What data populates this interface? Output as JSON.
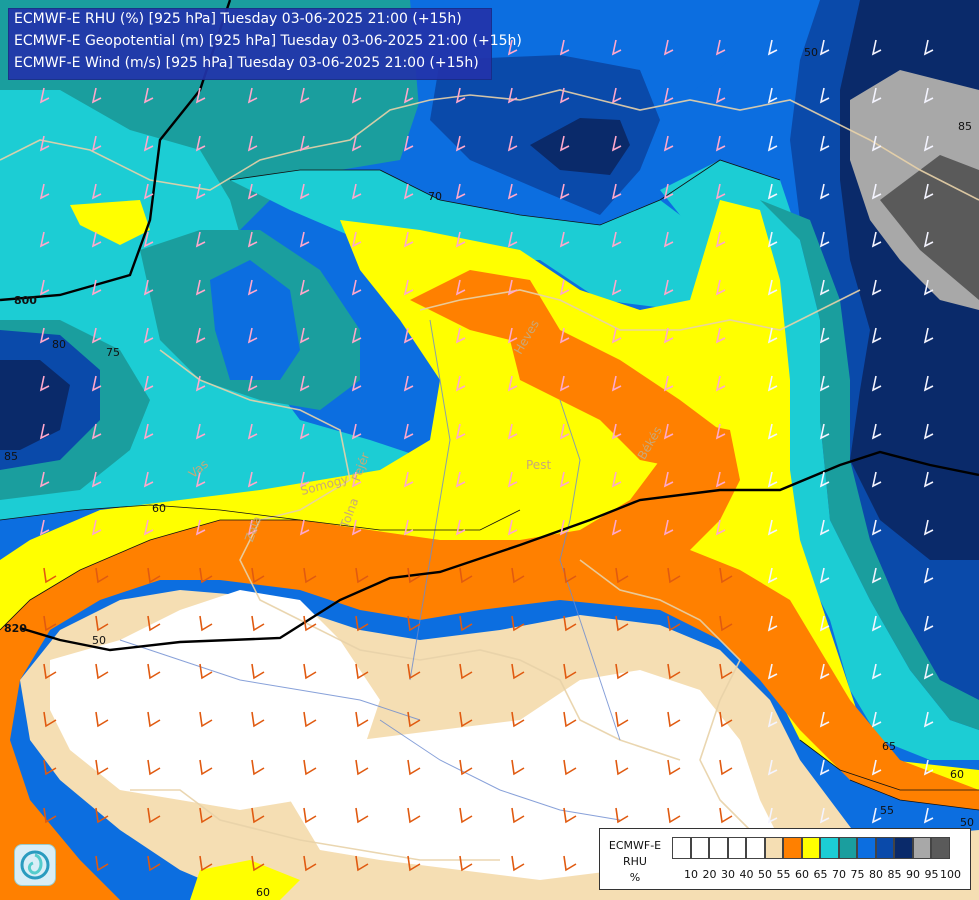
{
  "header": {
    "line1": "ECMWF-E RHU (%) [925 hPa] Tuesday 03-06-2025 21:00 (+15h)",
    "line2": "ECMWF-E Geopotential (m) [925 hPa] Tuesday 03-06-2025 21:00 (+15h)",
    "line3": "ECMWF-E Wind (m/s) [925 hPa] Tuesday 03-06-2025 21:00 (+15h)"
  },
  "legend": {
    "model": "ECMWF-E",
    "variable": "RHU",
    "unit": "%",
    "ticks": [
      "10",
      "20",
      "30",
      "40",
      "50",
      "55",
      "60",
      "65",
      "70",
      "75",
      "80",
      "85",
      "90",
      "95",
      "100"
    ],
    "colors": [
      "#ffffff",
      "#ffffff",
      "#ffffff",
      "#ffffff",
      "#ffffff",
      "#f5deb3",
      "#ff8000",
      "#ffff00",
      "#1ccdd4",
      "#1a9e9e",
      "#0c6ee0",
      "#0a4aaa",
      "#0a2a6a",
      "#a8a8a8",
      "#5a5a5a"
    ]
  },
  "contour_labels": {
    "geo_800": "800",
    "geo_820": "820",
    "rhu_70": "70",
    "rhu_75": "75",
    "rhu_80": "80",
    "rhu_85": "85",
    "rhu_50": "50",
    "rhu_55": "55",
    "rhu_60a": "60",
    "rhu_60b": "60",
    "rhu_60c": "60",
    "rhu_65": "65",
    "rhu_50b": "50",
    "rhu_85b": "85",
    "rhu_50c": "50"
  },
  "places": {
    "heves": "Heves",
    "pest": "Pest",
    "bekes": "Békés",
    "somogy": "Somogy",
    "feher": "Fejér",
    "tolna": "Tolna",
    "vas": "Vas",
    "zala": "Zala"
  }
}
